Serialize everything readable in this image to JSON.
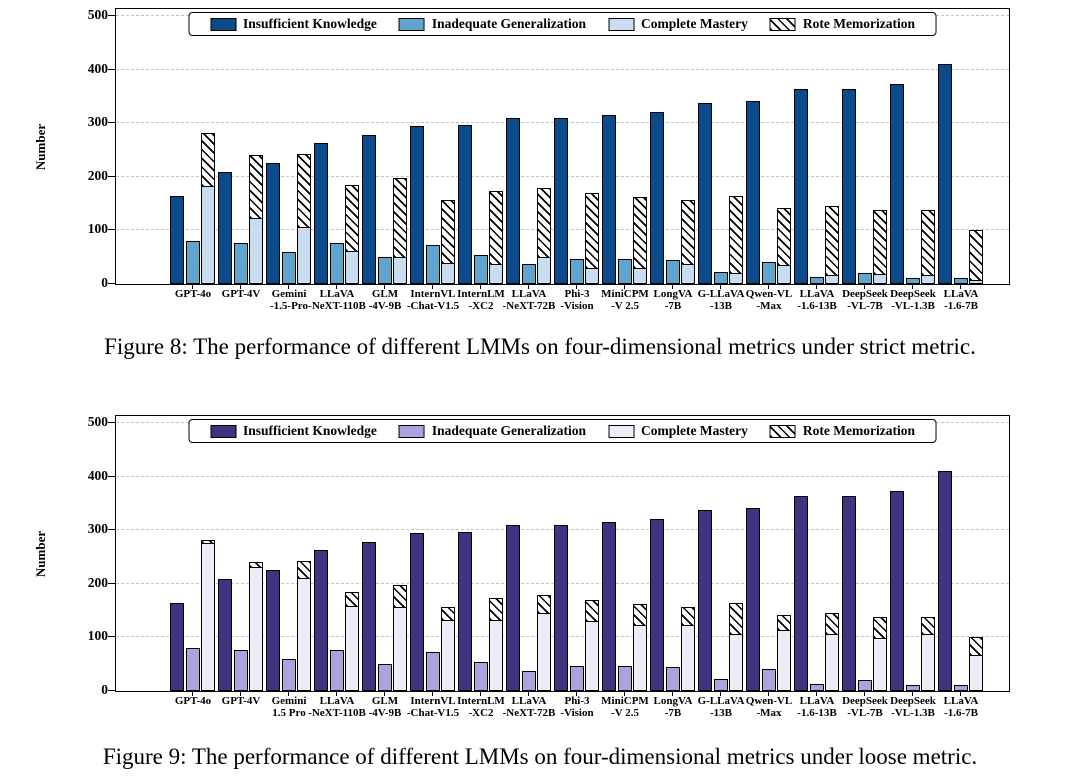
{
  "page": {
    "background": "#ffffff"
  },
  "figures": [
    {
      "id": "figure-8",
      "metric": "strict",
      "caption": "Figure 8: The performance of different LMMs on four-dimensional metrics under strict metric."
    },
    {
      "id": "figure-9",
      "metric": "loose",
      "caption": "Figure 9: The performance of different LMMs on four-dimensional metrics under loose metric."
    }
  ],
  "chart_data": [
    {
      "type": "bar",
      "metric": "strict",
      "title": "",
      "ylabel": "Number",
      "xlabel": "",
      "ylim": [
        0,
        500
      ],
      "yticks": [
        0,
        100,
        200,
        300,
        400,
        500
      ],
      "grid": "horizontal-dashed",
      "legend_position": "top-center-inside",
      "bar_edge_color": "#000000",
      "categories": [
        [
          "GPT-4o",
          ""
        ],
        [
          "GPT-4V",
          ""
        ],
        [
          "Gemini",
          "-1.5-Pro"
        ],
        [
          "LLaVA",
          "-NeXT-110B"
        ],
        [
          "GLM",
          "-4V-9B"
        ],
        [
          "InternVL",
          "-Chat-V1.5"
        ],
        [
          "InternLM",
          "-XC2"
        ],
        [
          "LLaVA",
          "-NeXT-72B"
        ],
        [
          "Phi-3",
          "-Vision"
        ],
        [
          "MiniCPM",
          "-V 2.5"
        ],
        [
          "LongVA",
          "-7B"
        ],
        [
          "G-LLaVA",
          "-13B"
        ],
        [
          "Qwen-VL",
          "-Max"
        ],
        [
          "LLaVA",
          "-1.6-13B"
        ],
        [
          "DeepSeek",
          "-VL-7B"
        ],
        [
          "DeepSeek",
          "-VL-1.3B"
        ],
        [
          "LLaVA",
          "-1.6-7B"
        ]
      ],
      "series": [
        {
          "name": "Insufficient Knowledge",
          "color": "#0D4A8C",
          "hatch": false,
          "slot": 0,
          "stacked": false,
          "values": [
            164,
            209,
            225,
            264,
            278,
            295,
            296,
            309,
            309,
            315,
            321,
            337,
            342,
            363,
            363,
            374,
            411
          ]
        },
        {
          "name": "Inadequate Generalization",
          "color": "#61A5CE",
          "hatch": false,
          "slot": 1,
          "stacked": false,
          "values": [
            80,
            76,
            59,
            76,
            50,
            72,
            55,
            37,
            47,
            46,
            45,
            22,
            41,
            14,
            21,
            12,
            12
          ]
        },
        {
          "name": "Complete Mastery",
          "color": "#C9DCF0",
          "hatch": false,
          "slot": 2,
          "stacked": false,
          "values": [
            183,
            124,
            108,
            63,
            52,
            41,
            38,
            51,
            31,
            30,
            38,
            21,
            37,
            18,
            20,
            17,
            8
          ]
        },
        {
          "name": "Rote Memorization",
          "color": "#FFFFFF",
          "hatch": true,
          "slot": 2,
          "stacked": true,
          "values": [
            98,
            117,
            134,
            122,
            145,
            116,
            136,
            129,
            138,
            132,
            119,
            144,
            105,
            127,
            118,
            121,
            93
          ]
        }
      ]
    },
    {
      "type": "bar",
      "metric": "loose",
      "title": "",
      "ylabel": "Number",
      "xlabel": "",
      "ylim": [
        0,
        500
      ],
      "yticks": [
        0,
        100,
        200,
        300,
        400,
        500
      ],
      "grid": "horizontal-dashed",
      "legend_position": "top-center-inside",
      "bar_edge_color": "#000000",
      "categories": [
        [
          "GPT-4o",
          ""
        ],
        [
          "GPT-4V",
          ""
        ],
        [
          "Gemini",
          "1.5 Pro"
        ],
        [
          "LLaVA",
          "-NeXT-110B"
        ],
        [
          "GLM",
          "-4V-9B"
        ],
        [
          "InternVL",
          "-Chat-V1.5"
        ],
        [
          "InternLM",
          "-XC2"
        ],
        [
          "LLaVA",
          "-NeXT-72B"
        ],
        [
          "Phi-3",
          "-Vision"
        ],
        [
          "MiniCPM",
          "-V 2.5"
        ],
        [
          "LongVA",
          "-7B"
        ],
        [
          "G-LLaVA",
          "-13B"
        ],
        [
          "Qwen-VL",
          "-Max"
        ],
        [
          "LLaVA",
          "-1.6-13B"
        ],
        [
          "DeepSeek",
          "-VL-7B"
        ],
        [
          "DeepSeek",
          "-VL-1.3B"
        ],
        [
          "LLaVA",
          "-1.6-7B"
        ]
      ],
      "series": [
        {
          "name": "Insufficient Knowledge",
          "color": "#3E3480",
          "hatch": false,
          "slot": 0,
          "stacked": false,
          "values": [
            164,
            209,
            225,
            264,
            278,
            295,
            296,
            309,
            309,
            315,
            321,
            337,
            342,
            363,
            363,
            374,
            411
          ]
        },
        {
          "name": "Inadequate Generalization",
          "color": "#ABA3DB",
          "hatch": false,
          "slot": 1,
          "stacked": false,
          "values": [
            80,
            76,
            59,
            76,
            50,
            72,
            55,
            37,
            47,
            46,
            45,
            22,
            41,
            14,
            21,
            12,
            12
          ]
        },
        {
          "name": "Complete Mastery",
          "color": "#EFECF8",
          "hatch": false,
          "slot": 2,
          "stacked": false,
          "values": [
            277,
            232,
            212,
            160,
            158,
            133,
            134,
            146,
            132,
            125,
            125,
            107,
            114,
            108,
            100,
            108,
            68
          ]
        },
        {
          "name": "Rote Memorization",
          "color": "#FFFFFF",
          "hatch": true,
          "slot": 2,
          "stacked": true,
          "values": [
            4,
            9,
            30,
            25,
            39,
            24,
            40,
            34,
            37,
            37,
            32,
            58,
            28,
            37,
            38,
            30,
            33
          ]
        }
      ]
    }
  ]
}
